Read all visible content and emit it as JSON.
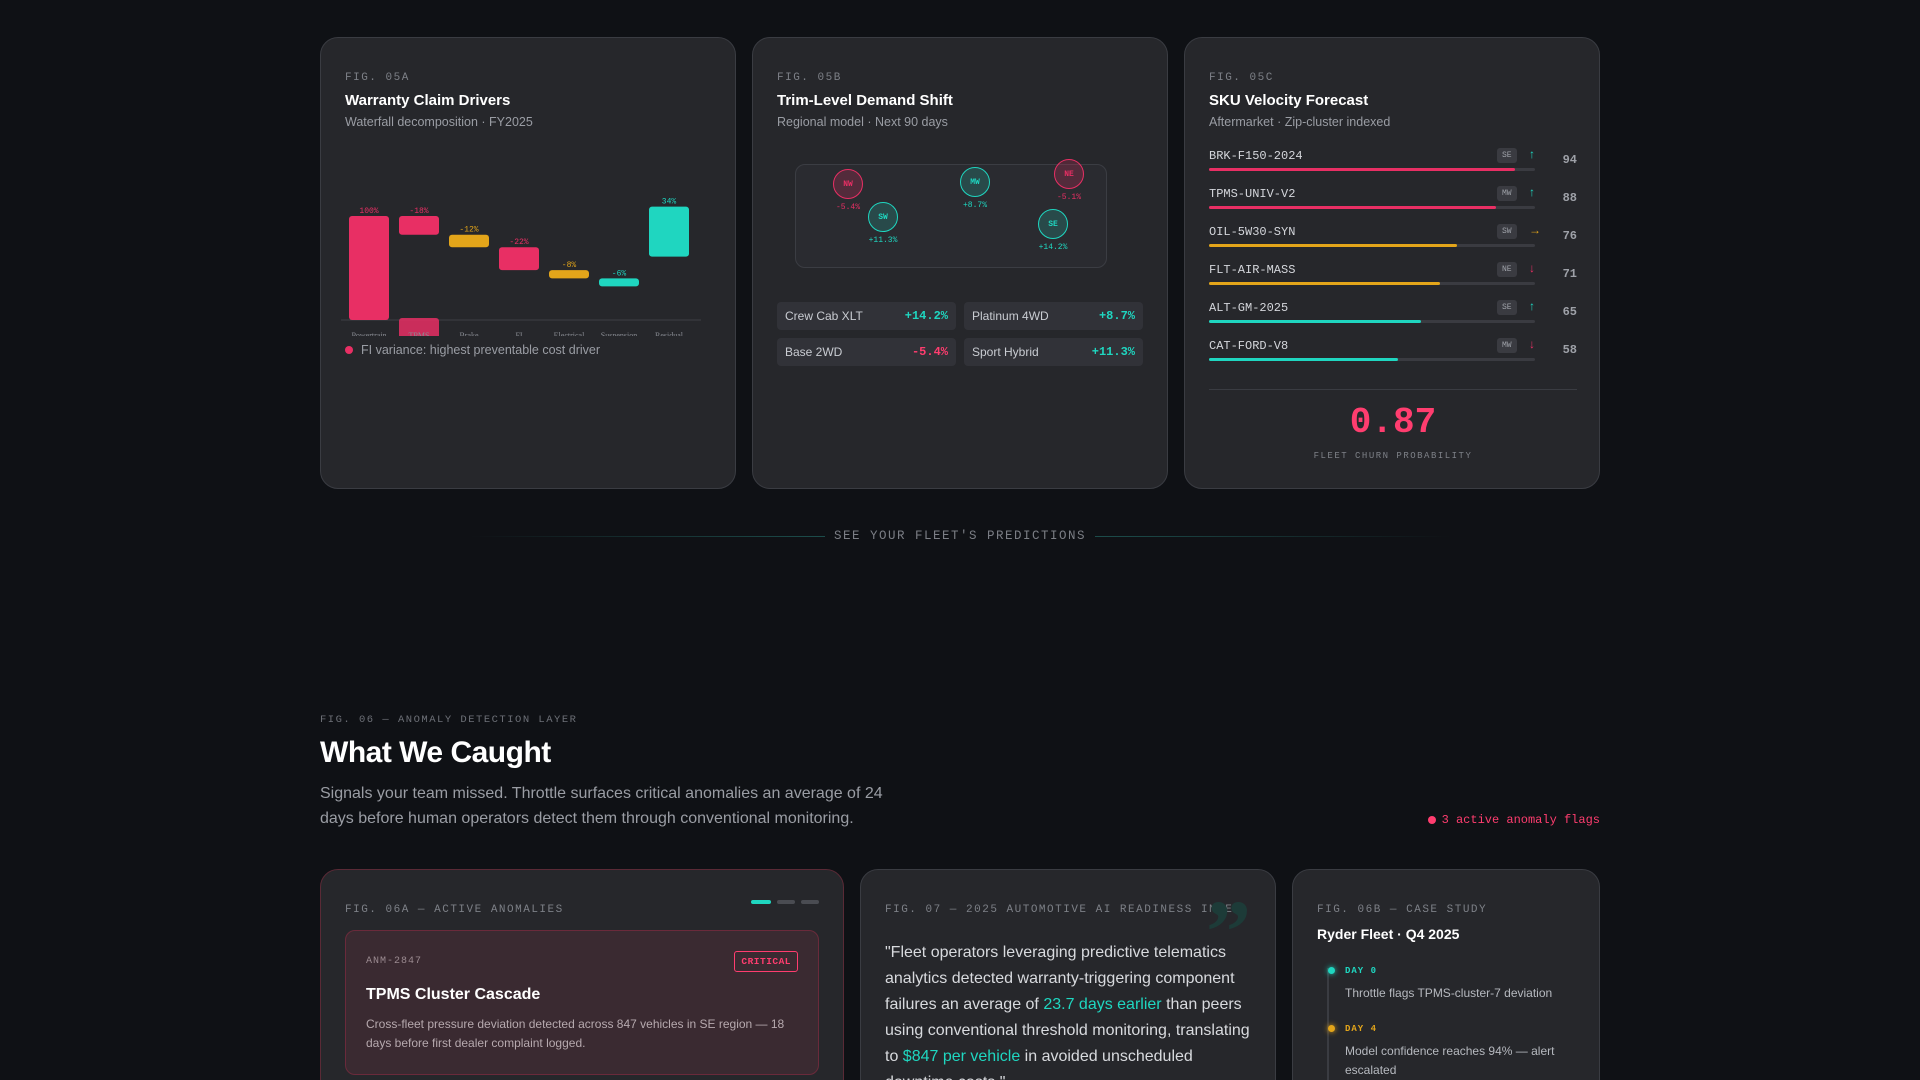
{
  "colors": {
    "pink": "#e82f64",
    "amber": "#e3a51a",
    "teal": "#1fd6c0",
    "muted": "#9a9da4"
  },
  "card_a": {
    "fig": "FIG. 05A",
    "title": "Warranty Claim Drivers",
    "subtitle": "Waterfall decomposition · FY2025",
    "legend": "FI variance: highest preventable cost driver"
  },
  "chart_data": {
    "type": "bar",
    "subtype": "waterfall",
    "categories": [
      "Powertrain",
      "TPMS",
      "Brake",
      "FI",
      "Electrical",
      "Suspension",
      "Residual"
    ],
    "values": [
      100,
      -18,
      -12,
      -22,
      -8,
      -6,
      34
    ],
    "value_labels": [
      "100%",
      "-18%",
      "-12%",
      "-22%",
      "-8%",
      "-6%",
      "34%"
    ],
    "colors": [
      "#e82f64",
      "#e82f64",
      "#e3a51a",
      "#e82f64",
      "#e3a51a",
      "#1fd6c0",
      "#1fd6c0"
    ],
    "title": "",
    "xlabel": "",
    "ylabel": "",
    "grid": false
  },
  "card_b": {
    "fig": "FIG. 05B",
    "title": "Trim-Level Demand Shift",
    "subtitle": "Regional model · Next 90 days",
    "regions": [
      {
        "code": "NW",
        "value": "-5.4%",
        "tone": "neg"
      },
      {
        "code": "MW",
        "value": "+8.7%",
        "tone": "pos"
      },
      {
        "code": "NE",
        "value": "-5.1%",
        "tone": "neg"
      },
      {
        "code": "SW",
        "value": "+11.3%",
        "tone": "pos"
      },
      {
        "code": "SE",
        "value": "+14.2%",
        "tone": "pos"
      }
    ],
    "trims": [
      {
        "name": "Crew Cab XLT",
        "value": "+14.2%",
        "tone": "pos"
      },
      {
        "name": "Platinum 4WD",
        "value": "+8.7%",
        "tone": "pos"
      },
      {
        "name": "Base 2WD",
        "value": "-5.4%",
        "tone": "neg"
      },
      {
        "name": "Sport Hybrid",
        "value": "+11.3%",
        "tone": "pos"
      }
    ]
  },
  "card_c": {
    "fig": "FIG. 05C",
    "title": "SKU Velocity Forecast",
    "subtitle": "Aftermarket · Zip-cluster indexed",
    "skus": [
      {
        "name": "BRK-F150-2024",
        "region": "SE",
        "trend": "↑",
        "trend_color": "#1fd6c0",
        "score": 94,
        "level": 0.94,
        "color": "#e82f64"
      },
      {
        "name": "TPMS-UNIV-V2",
        "region": "MW",
        "trend": "↑",
        "trend_color": "#1fd6c0",
        "score": 88,
        "level": 0.88,
        "color": "#e82f64"
      },
      {
        "name": "OIL-5W30-SYN",
        "region": "SW",
        "trend": "→",
        "trend_color": "#e3a51a",
        "score": 76,
        "level": 0.76,
        "color": "#e3a51a"
      },
      {
        "name": "FLT-AIR-MASS",
        "region": "NE",
        "trend": "↓",
        "trend_color": "#e82f64",
        "score": 71,
        "level": 0.71,
        "color": "#e3a51a"
      },
      {
        "name": "ALT-GM-2025",
        "region": "SE",
        "trend": "↑",
        "trend_color": "#1fd6c0",
        "score": 65,
        "level": 0.65,
        "color": "#1fd6c0"
      },
      {
        "name": "CAT-FORD-V8",
        "region": "MW",
        "trend": "↓",
        "trend_color": "#e82f64",
        "score": 58,
        "level": 0.58,
        "color": "#1fd6c0"
      }
    ],
    "metric_value": "0.87",
    "metric_label": "FLEET CHURN PROBABILITY"
  },
  "divider": {
    "label": "SEE YOUR FLEET'S PREDICTIONS"
  },
  "section": {
    "fig": "FIG. 06 — ANOMALY DETECTION LAYER",
    "title": "What We Caught",
    "description": "Signals your team missed. Throttle surfaces critical anomalies an average of 24 days before human operators detect them through conventional monitoring.",
    "flags": "3 active anomaly flags"
  },
  "card_d": {
    "fig": "FIG. 06A — ACTIVE ANOMALIES",
    "anomaly": {
      "id": "ANM-2847",
      "badge": "CRITICAL",
      "title": "TPMS Cluster Cascade",
      "description": "Cross-fleet pressure deviation detected across 847 vehicles in SE region — 18 days before first dealer complaint logged."
    }
  },
  "card_e": {
    "fig": "FIG. 07 — 2025 AUTOMOTIVE AI READINESS INDEX",
    "quote_mark": "”",
    "quote_1": "\"Fleet operators leveraging predictive telematics analytics detected warranty-triggering component failures an average of ",
    "quote_hl_1": "23.7 days earlier",
    "quote_2": " than peers using conventional threshold monitoring, translating to ",
    "quote_hl_2": "$847 per vehicle",
    "quote_3": " in avoided unscheduled downtime costs.\""
  },
  "card_f": {
    "fig": "FIG. 06B — CASE STUDY",
    "title": "Ryder Fleet · Q4 2025",
    "timeline": [
      {
        "day": "DAY 0",
        "text": "Throttle flags TPMS-cluster-7 deviation",
        "color": "#1fd6c0"
      },
      {
        "day": "DAY 4",
        "text": "Model confidence reaches 94% — alert escalated",
        "color": "#e3a51a"
      }
    ]
  }
}
